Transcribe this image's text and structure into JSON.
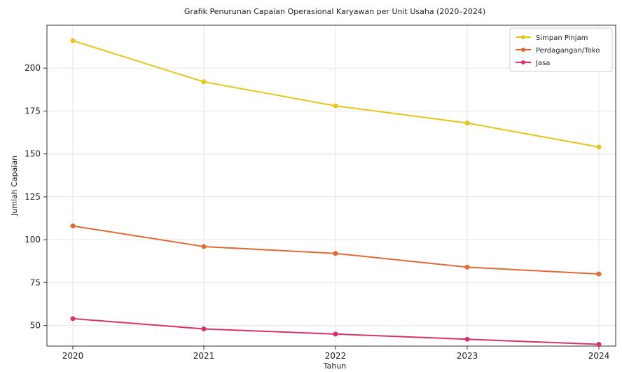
{
  "chart_data": {
    "type": "line",
    "title": "Grafik Penurunan Capaian Operasional Karyawan per Unit Usaha (2020–2024)",
    "xlabel": "Tahun",
    "ylabel": "Jumlah Capaian",
    "categories": [
      "2020",
      "2021",
      "2022",
      "2023",
      "2024"
    ],
    "yticks": [
      50,
      75,
      100,
      125,
      150,
      175,
      200
    ],
    "ylim": [
      38,
      225
    ],
    "grid": true,
    "legend_position": "top-right",
    "series": [
      {
        "name": "Simpan Pinjam",
        "color": "#e6c619",
        "values": [
          216,
          192,
          178,
          168,
          154
        ]
      },
      {
        "name": "Perdagangan/Toko",
        "color": "#e06a34",
        "values": [
          108,
          96,
          92,
          84,
          80
        ]
      },
      {
        "name": "Jasa",
        "color": "#d6336c",
        "values": [
          54,
          48,
          45,
          42,
          39
        ]
      }
    ]
  }
}
